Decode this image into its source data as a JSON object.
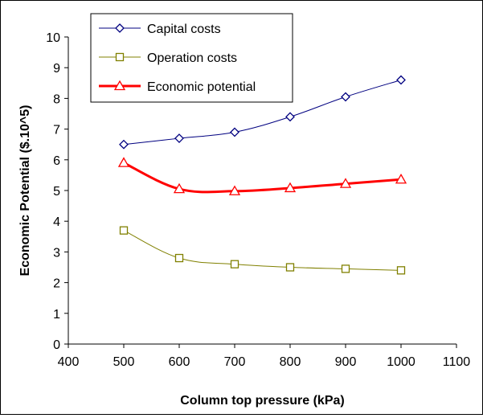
{
  "chart_data": {
    "type": "line",
    "title": "",
    "xlabel": "Column top pressure (kPa)",
    "ylabel": "Economic Potential ($.10^5)",
    "xlim": [
      400,
      1100
    ],
    "ylim": [
      0,
      10
    ],
    "xticks": [
      400,
      500,
      600,
      700,
      800,
      900,
      1000,
      1100
    ],
    "yticks": [
      0,
      1,
      2,
      3,
      4,
      5,
      6,
      7,
      8,
      9,
      10
    ],
    "xtick_labels": [
      "400",
      "500",
      "600",
      "700",
      "800",
      "900",
      "1000",
      "1100"
    ],
    "ytick_labels": [
      "0",
      "1",
      "2",
      "3",
      "4",
      "5",
      "6",
      "7",
      "8",
      "9",
      "10"
    ],
    "grid": false,
    "legend_position": "top-left",
    "x": [
      500,
      600,
      700,
      800,
      900,
      1000
    ],
    "series": [
      {
        "name": "Capital costs",
        "values": [
          6.5,
          6.7,
          6.9,
          7.4,
          8.05,
          8.6
        ],
        "color": "#000080",
        "marker": "diamond",
        "line_width": 1
      },
      {
        "name": "Operation costs",
        "values": [
          3.7,
          2.8,
          2.6,
          2.5,
          2.45,
          2.4
        ],
        "color": "#808000",
        "marker": "square",
        "line_width": 1
      },
      {
        "name": "Economic potential",
        "values": [
          5.9,
          5.05,
          4.98,
          5.08,
          5.22,
          5.36
        ],
        "color": "#ff0000",
        "marker": "triangle",
        "line_width": 3
      }
    ]
  }
}
